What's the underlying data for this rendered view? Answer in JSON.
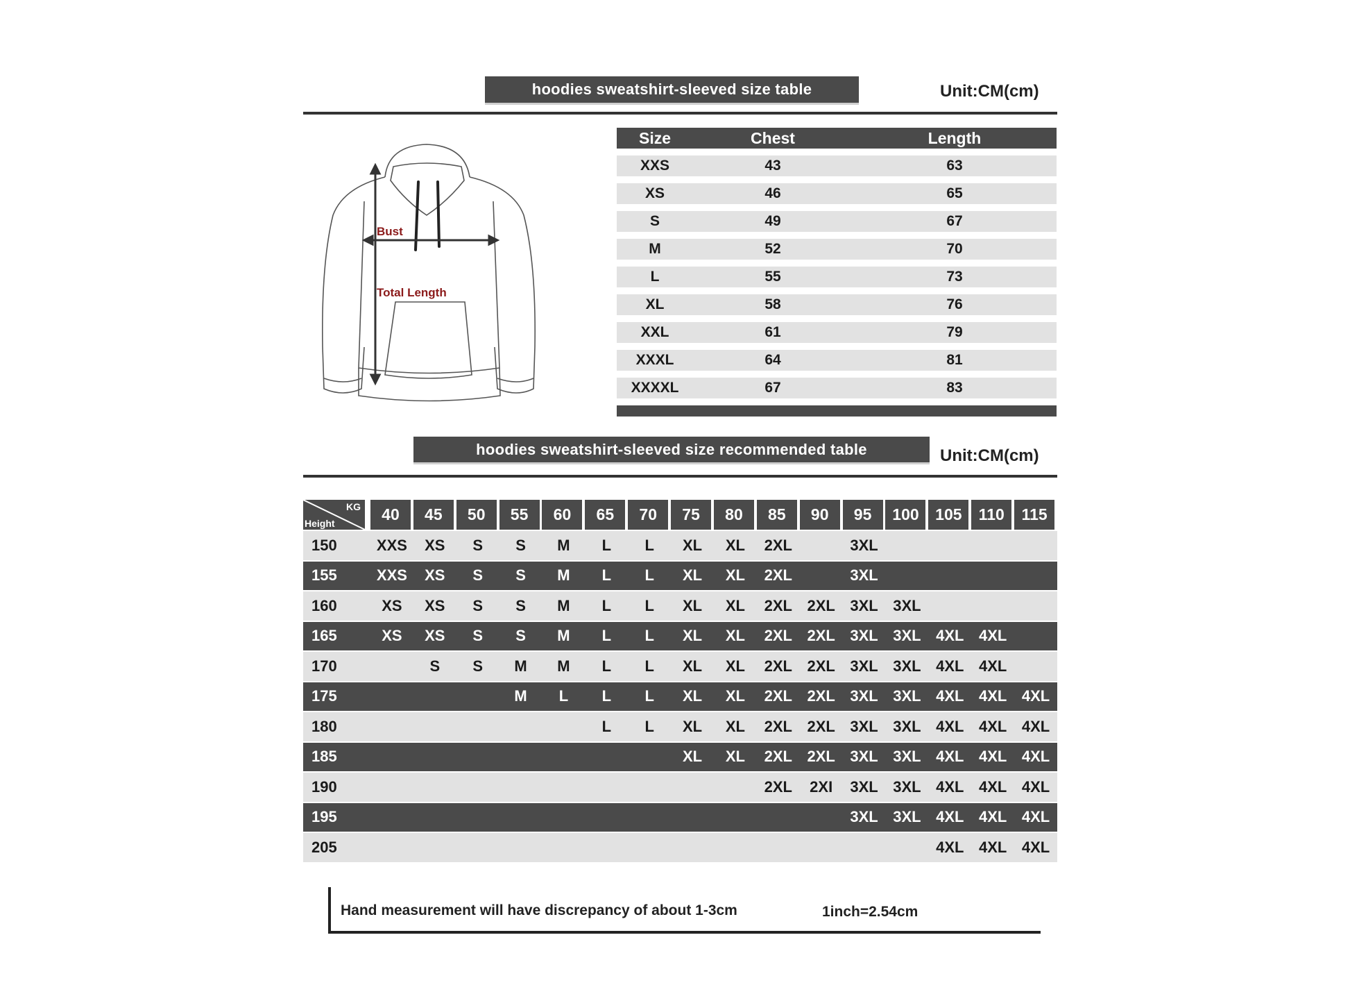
{
  "size_table": {
    "title": "hoodies sweatshirt-sleeved size  table",
    "unit": "Unit:CM(cm)",
    "headers": [
      "Size",
      "Chest",
      "Length"
    ],
    "rows": [
      [
        "XXS",
        "43",
        "63"
      ],
      [
        "XS",
        "46",
        "65"
      ],
      [
        "S",
        "49",
        "67"
      ],
      [
        "M",
        "52",
        "70"
      ],
      [
        "L",
        "55",
        "73"
      ],
      [
        "XL",
        "58",
        "76"
      ],
      [
        "XXL",
        "61",
        "79"
      ],
      [
        "XXXL",
        "64",
        "81"
      ],
      [
        "XXXXL",
        "67",
        "83"
      ]
    ]
  },
  "diagram": {
    "bust_label": "Bust",
    "length_label": "Total Length",
    "label_color": "#8b1a1a"
  },
  "recommended_table": {
    "title": "hoodies sweatshirt-sleeved size recommended table",
    "unit": "Unit:CM(cm)",
    "corner_kg": "KG",
    "corner_height": "Height",
    "weights": [
      "40",
      "45",
      "50",
      "55",
      "60",
      "65",
      "70",
      "75",
      "80",
      "85",
      "90",
      "95",
      "100",
      "105",
      "110",
      "115"
    ],
    "rows": [
      {
        "height": "150",
        "style": "light",
        "sizes": [
          "XXS",
          "XS",
          "S",
          "S",
          "M",
          "L",
          "L",
          "XL",
          "XL",
          "2XL",
          "",
          "3XL",
          "",
          "",
          "",
          ""
        ]
      },
      {
        "height": "155",
        "style": "dark",
        "sizes": [
          "XXS",
          "XS",
          "S",
          "S",
          "M",
          "L",
          "L",
          "XL",
          "XL",
          "2XL",
          "",
          "3XL",
          "",
          "",
          "",
          ""
        ]
      },
      {
        "height": "160",
        "style": "light",
        "sizes": [
          "XS",
          "XS",
          "S",
          "S",
          "M",
          "L",
          "L",
          "XL",
          "XL",
          "2XL",
          "2XL",
          "3XL",
          "3XL",
          "",
          "",
          ""
        ]
      },
      {
        "height": "165",
        "style": "dark",
        "sizes": [
          "XS",
          "XS",
          "S",
          "S",
          "M",
          "L",
          "L",
          "XL",
          "XL",
          "2XL",
          "2XL",
          "3XL",
          "3XL",
          "4XL",
          "4XL",
          ""
        ]
      },
      {
        "height": "170",
        "style": "light",
        "sizes": [
          "",
          "S",
          "S",
          "M",
          "M",
          "L",
          "L",
          "XL",
          "XL",
          "2XL",
          "2XL",
          "3XL",
          "3XL",
          "4XL",
          "4XL",
          ""
        ]
      },
      {
        "height": "175",
        "style": "dark",
        "sizes": [
          "",
          "",
          "",
          "M",
          "L",
          "L",
          "L",
          "XL",
          "XL",
          "2XL",
          "2XL",
          "3XL",
          "3XL",
          "4XL",
          "4XL",
          "4XL"
        ]
      },
      {
        "height": "180",
        "style": "light",
        "sizes": [
          "",
          "",
          "",
          "",
          "",
          "L",
          "L",
          "XL",
          "XL",
          "2XL",
          "2XL",
          "3XL",
          "3XL",
          "4XL",
          "4XL",
          "4XL"
        ]
      },
      {
        "height": "185",
        "style": "dark",
        "sizes": [
          "",
          "",
          "",
          "",
          "",
          "",
          "",
          "XL",
          "XL",
          "2XL",
          "2XL",
          "3XL",
          "3XL",
          "4XL",
          "4XL",
          "4XL"
        ]
      },
      {
        "height": "190",
        "style": "light",
        "sizes": [
          "",
          "",
          "",
          "",
          "",
          "",
          "",
          "",
          "",
          "2XL",
          "2XI",
          "3XL",
          "3XL",
          "4XL",
          "4XL",
          "4XL"
        ]
      },
      {
        "height": "195",
        "style": "dark",
        "sizes": [
          "",
          "",
          "",
          "",
          "",
          "",
          "",
          "",
          "",
          "",
          "",
          "3XL",
          "3XL",
          "4XL",
          "4XL",
          "4XL"
        ]
      },
      {
        "height": "205",
        "style": "light",
        "sizes": [
          "",
          "",
          "",
          "",
          "",
          "",
          "",
          "",
          "",
          "",
          "",
          "",
          "",
          "4XL",
          "4XL",
          "4XL"
        ]
      }
    ]
  },
  "footer": {
    "note": "Hand measurement will have discrepancy of about  1-3cm",
    "conversion": "1inch=2.54cm"
  },
  "colors": {
    "dark_bar": "#4a4a4a",
    "light_bar": "#e2e2e2"
  }
}
